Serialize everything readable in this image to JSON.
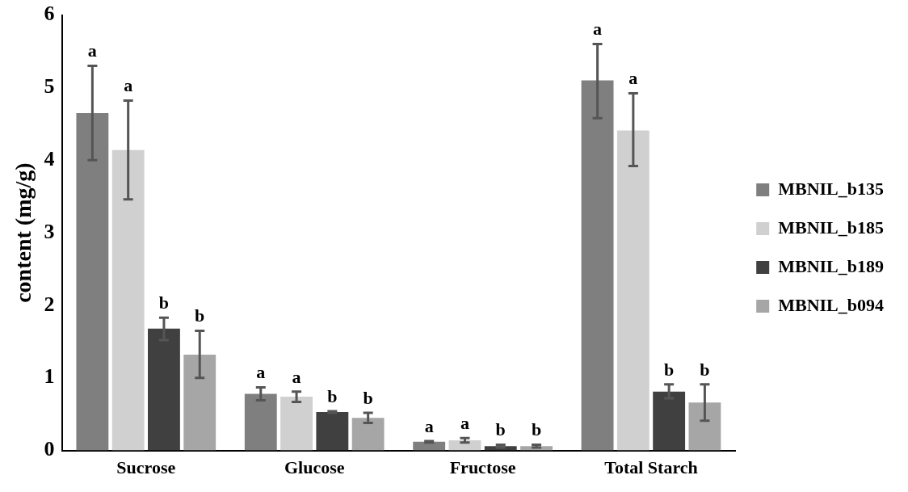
{
  "chart_data": {
    "type": "bar",
    "ylabel": "content (mg/g)",
    "categories": [
      "Sucrose",
      "Glucose",
      "Fructose",
      "Total Starch"
    ],
    "ylim": [
      0,
      6
    ],
    "yticks": [
      0,
      1,
      2,
      3,
      4,
      5,
      6
    ],
    "grid": false,
    "legend": "right",
    "series": [
      {
        "name": "MBNIL_b135",
        "color": "#7f7f7f",
        "values": [
          4.65,
          0.78,
          0.12,
          5.1
        ],
        "errors": [
          [
            4.0,
            5.3
          ],
          [
            0.69,
            0.87
          ],
          [
            0.11,
            0.13
          ],
          [
            4.58,
            5.6
          ]
        ],
        "value_labels": [
          "a",
          "a",
          "a",
          "a"
        ]
      },
      {
        "name": "MBNIL_b185",
        "color": "#d0d0d0",
        "values": [
          4.14,
          0.74,
          0.14,
          4.41
        ],
        "errors": [
          [
            3.46,
            4.82
          ],
          [
            0.67,
            0.81
          ],
          [
            0.11,
            0.17
          ],
          [
            3.92,
            4.92
          ]
        ],
        "value_labels": [
          "a",
          "a",
          "a",
          "a"
        ]
      },
      {
        "name": "MBNIL_b189",
        "color": "#404040",
        "values": [
          1.68,
          0.53,
          0.06,
          0.81
        ],
        "errors": [
          [
            1.52,
            1.83
          ],
          [
            0.52,
            0.54
          ],
          [
            0.04,
            0.08
          ],
          [
            0.72,
            0.91
          ]
        ],
        "value_labels": [
          "b",
          "b",
          "b",
          "b"
        ]
      },
      {
        "name": "MBNIL_b094",
        "color": "#a6a6a6",
        "values": [
          1.32,
          0.45,
          0.06,
          0.66
        ],
        "errors": [
          [
            1.0,
            1.65
          ],
          [
            0.38,
            0.52
          ],
          [
            0.04,
            0.08
          ],
          [
            0.41,
            0.91
          ]
        ],
        "value_labels": [
          "b",
          "b",
          "b",
          "b"
        ]
      }
    ]
  }
}
